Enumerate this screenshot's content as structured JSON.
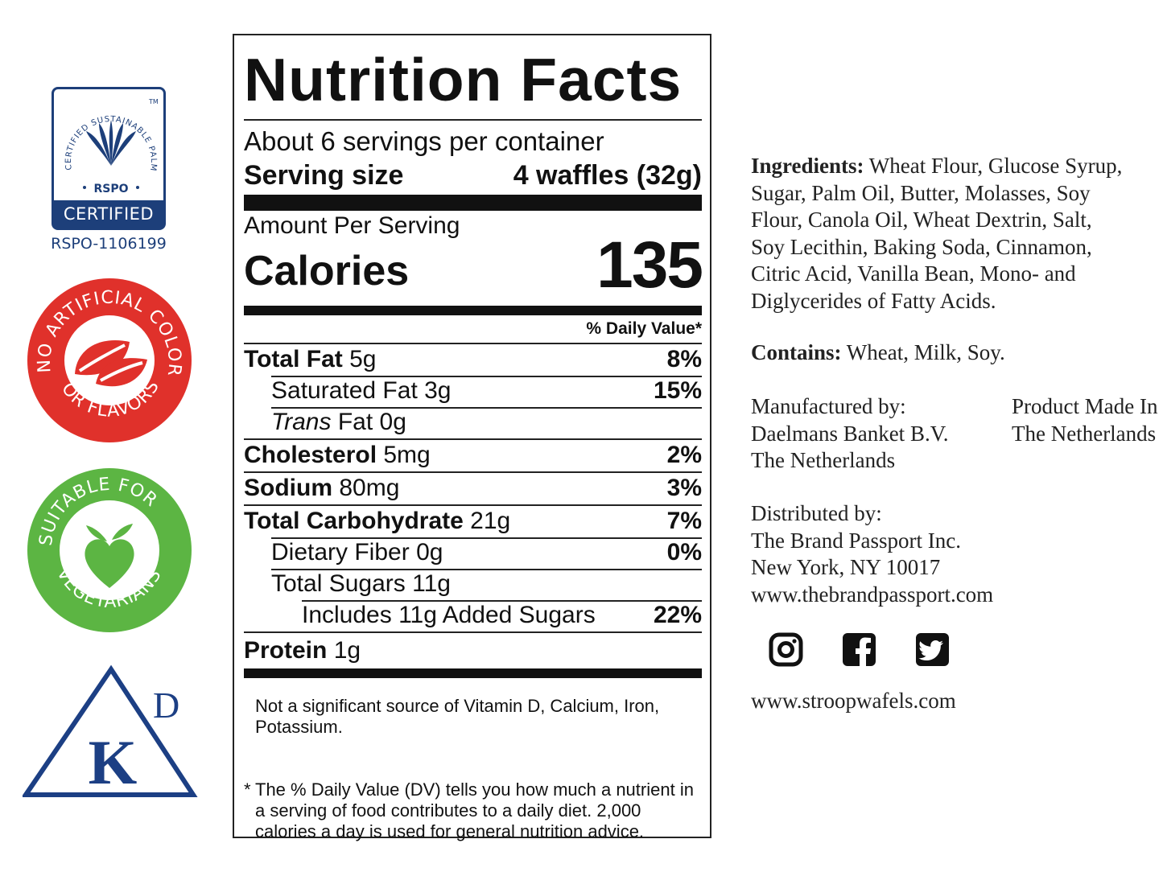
{
  "badges": {
    "rspo": {
      "arc_text": "CERTIFIED SUSTAINABLE PALM OIL",
      "tm": "TM",
      "center": "RSPO",
      "band": "CERTIFIED",
      "id": "RSPO-1106199"
    },
    "no_artificial": {
      "top": "NO ARTIFICIAL COLORS",
      "bottom": "OR FLAVORS"
    },
    "vegetarian": {
      "top": "SUITABLE FOR",
      "bottom": "VEGETARIANS"
    },
    "kosher": {
      "k": "K",
      "d": "D"
    }
  },
  "label": {
    "title": "Nutrition Facts",
    "servings": "About 6 servings per container",
    "serving_size_label": "Serving size",
    "serving_size_value": "4 waffles (32g)",
    "amount_per_serving": "Amount Per Serving",
    "calories_label": "Calories",
    "calories_value": "135",
    "dv_header": "% Daily Value*",
    "rows": [
      {
        "name": "Total Fat",
        "amount": "5g",
        "dv": "8%"
      },
      {
        "name": "Saturated Fat",
        "amount": "3g",
        "dv": "15%"
      },
      {
        "name": "Trans",
        "name_rest": "Fat",
        "amount": "0g",
        "dv": ""
      },
      {
        "name": "Cholesterol",
        "amount": "5mg",
        "dv": "2%"
      },
      {
        "name": "Sodium",
        "amount": "80mg",
        "dv": "3%"
      },
      {
        "name": "Total Carbohydrate",
        "amount": "21g",
        "dv": "7%"
      },
      {
        "name": "Dietary Fiber",
        "amount": "0g",
        "dv": "0%"
      },
      {
        "name": "Total Sugars",
        "amount": "11g",
        "dv": ""
      },
      {
        "name": "Includes 11g Added Sugars",
        "amount": "",
        "dv": "22%"
      },
      {
        "name": "Protein",
        "amount": "1g",
        "dv": ""
      }
    ],
    "vitamin_note": "Not a significant source of Vitamin D, Calcium, Iron, Potassium.",
    "footnote_star": "*",
    "footnote": "The % Daily Value (DV) tells you how much a nutrient in a serving of food contributes to a daily diet. 2,000 calories a day is used for general nutrition advice."
  },
  "info": {
    "ingredients_label": "Ingredients:",
    "ingredients": "Wheat Flour, Glucose Syrup, Sugar, Palm Oil, Butter, Molasses, Soy Flour, Canola Oil, Wheat Dextrin, Salt, Soy Lecithin, Baking Soda, Cinnamon, Citric Acid, Vanilla Bean, Mono- and Diglycerides of Fatty Acids.",
    "contains_label": "Contains:",
    "contains": "Wheat, Milk, Soy.",
    "manufactured": [
      "Manufactured by:",
      "Daelmans Banket B.V.",
      "The Netherlands"
    ],
    "made_in": [
      "Product Made In",
      "The Netherlands"
    ],
    "distributed": [
      "Distributed by:",
      "The Brand Passport Inc.",
      "New York, NY 10017",
      "www.thebrandpassport.com"
    ],
    "website": "www.stroopwafels.com"
  },
  "colors": {
    "rspo_blue": "#1d3f7a",
    "no_artificial_red": "#e0312b",
    "vegetarian_green": "#5cb543",
    "kosher_blue": "#1c3f84"
  },
  "icons": [
    "instagram-icon",
    "facebook-icon",
    "twitter-icon"
  ]
}
